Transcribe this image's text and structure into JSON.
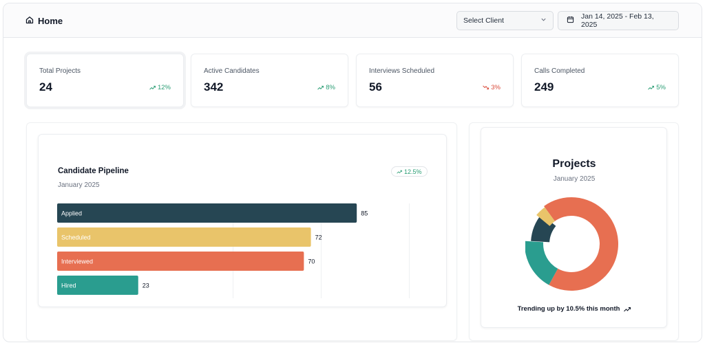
{
  "header": {
    "title": "Home",
    "client_select": {
      "value": "Select Client"
    },
    "date_range": "Jan 14, 2025 - Feb 13, 2025"
  },
  "stats": [
    {
      "label": "Total Projects",
      "value": "24",
      "trend": "12%",
      "direction": "up"
    },
    {
      "label": "Active Candidates",
      "value": "342",
      "trend": "8%",
      "direction": "up"
    },
    {
      "label": "Interviews Scheduled",
      "value": "56",
      "trend": "3%",
      "direction": "down"
    },
    {
      "label": "Calls Completed",
      "value": "249",
      "trend": "5%",
      "direction": "up"
    }
  ],
  "pipeline": {
    "title": "Candidate Pipeline",
    "subtitle": "January 2025",
    "badge": "12.5%",
    "chart_data": {
      "type": "bar",
      "orientation": "horizontal",
      "categories": [
        "Applied",
        "Scheduled",
        "Interviewed",
        "Hired"
      ],
      "values": [
        85,
        72,
        70,
        23
      ],
      "colors": [
        "#264653",
        "#e9c46a",
        "#e76f51",
        "#2a9d8f"
      ],
      "xlim": [
        0,
        100
      ],
      "grid": true
    }
  },
  "projects": {
    "title": "Projects",
    "subtitle": "January 2025",
    "footer": "Trending up by 10.5% this month",
    "chart_data": {
      "type": "pie",
      "variant": "donut",
      "values": [
        68,
        18,
        10,
        4
      ],
      "colors": [
        "#e76f51",
        "#2a9d8f",
        "#264653",
        "#e9c46a"
      ]
    }
  },
  "colors": {
    "accent_green": "#2a9d74",
    "accent_red": "#d94c3b"
  }
}
